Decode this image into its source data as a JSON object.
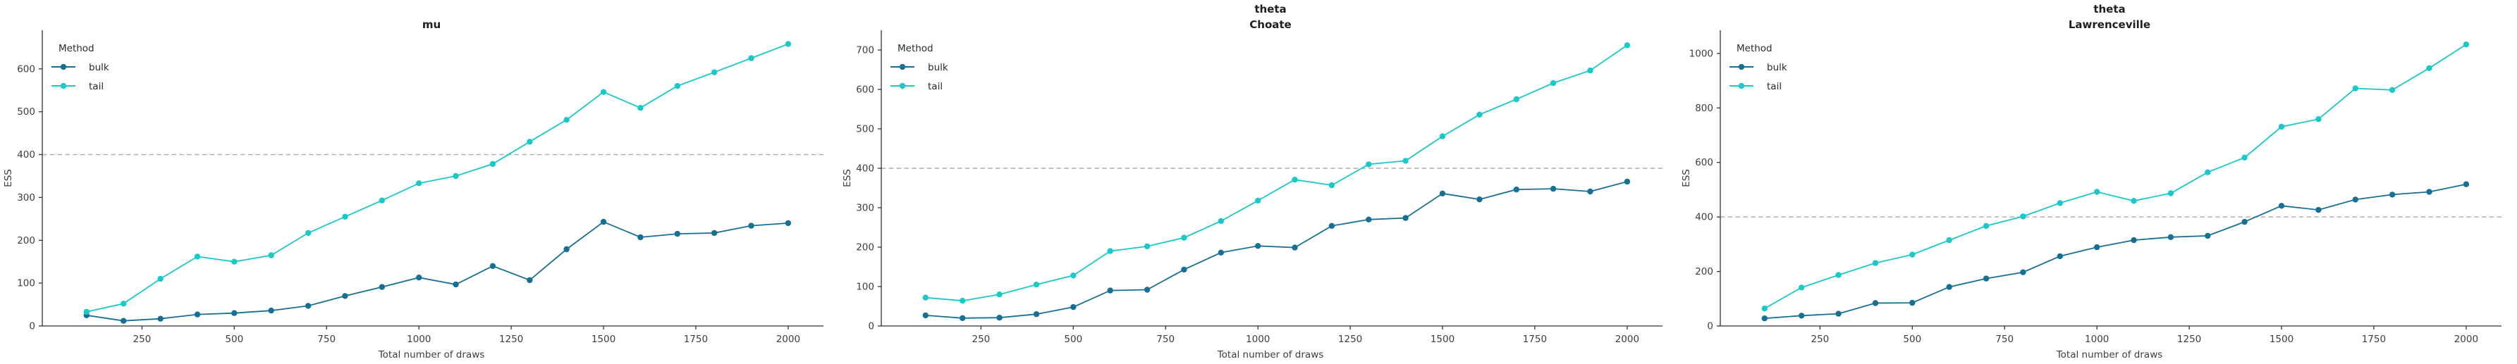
{
  "figure": {
    "legend_title": "Method",
    "refline_y": 400,
    "colors": {
      "bulk": "#177094",
      "tail": "#1ac8c8",
      "refline": "#ababab",
      "axis": "#333333",
      "tick_text": "#3d3d3d",
      "title_text": "#1f1f1f"
    }
  },
  "chart_data": [
    {
      "type": "line",
      "title_line1": "",
      "title_line2": "mu",
      "xlabel": "Total number of draws",
      "ylabel": "ESS",
      "legend_position": "upper left",
      "grid": false,
      "refline": 400,
      "xlim": [
        -20,
        2090
      ],
      "ylim": [
        0,
        690
      ],
      "xticks": [
        250,
        500,
        750,
        1000,
        1250,
        1500,
        1750,
        2000
      ],
      "yticks": [
        0,
        100,
        200,
        300,
        400,
        500,
        600
      ],
      "x": [
        100,
        200,
        300,
        400,
        500,
        600,
        700,
        800,
        900,
        1000,
        1100,
        1200,
        1300,
        1400,
        1500,
        1600,
        1700,
        1800,
        1900,
        2000
      ],
      "series": [
        {
          "name": "bulk",
          "color": "#177094",
          "values": [
            25,
            12,
            17,
            27,
            30,
            36,
            47,
            70,
            91,
            113,
            97,
            140,
            107,
            179,
            243,
            207,
            215,
            217,
            234,
            240
          ]
        },
        {
          "name": "tail",
          "color": "#1ac8c8",
          "values": [
            33,
            52,
            110,
            162,
            150,
            165,
            217,
            255,
            293,
            333,
            350,
            378,
            430,
            481,
            546,
            509,
            560,
            592,
            625,
            658
          ]
        }
      ]
    },
    {
      "type": "line",
      "title_line1": "theta",
      "title_line2": "Choate",
      "xlabel": "Total number of draws",
      "ylabel": "ESS",
      "legend_position": "upper left",
      "grid": false,
      "refline": 400,
      "xlim": [
        -20,
        2090
      ],
      "ylim": [
        0,
        750
      ],
      "xticks": [
        250,
        500,
        750,
        1000,
        1250,
        1500,
        1750,
        2000
      ],
      "yticks": [
        0,
        100,
        200,
        300,
        400,
        500,
        600,
        700
      ],
      "x": [
        100,
        200,
        300,
        400,
        500,
        600,
        700,
        800,
        900,
        1000,
        1100,
        1200,
        1300,
        1400,
        1500,
        1600,
        1700,
        1800,
        1900,
        2000
      ],
      "series": [
        {
          "name": "bulk",
          "color": "#177094",
          "values": [
            27,
            20,
            21,
            30,
            48,
            90,
            92,
            143,
            186,
            203,
            199,
            254,
            270,
            274,
            336,
            321,
            346,
            348,
            341,
            366
          ]
        },
        {
          "name": "tail",
          "color": "#1ac8c8",
          "values": [
            72,
            64,
            80,
            105,
            128,
            190,
            202,
            224,
            266,
            318,
            371,
            357,
            410,
            419,
            481,
            536,
            575,
            616,
            648,
            712
          ]
        }
      ]
    },
    {
      "type": "line",
      "title_line1": "theta",
      "title_line2": "Lawrenceville",
      "xlabel": "Total number of draws",
      "ylabel": "ESS",
      "legend_position": "upper left",
      "grid": false,
      "refline": 400,
      "xlim": [
        -20,
        2090
      ],
      "ylim": [
        0,
        1085
      ],
      "xticks": [
        250,
        500,
        750,
        1000,
        1250,
        1500,
        1750,
        2000
      ],
      "yticks": [
        0,
        200,
        400,
        600,
        800,
        1000
      ],
      "x": [
        100,
        200,
        300,
        400,
        500,
        600,
        700,
        800,
        900,
        1000,
        1100,
        1200,
        1300,
        1400,
        1500,
        1600,
        1700,
        1800,
        1900,
        2000
      ],
      "series": [
        {
          "name": "bulk",
          "color": "#177094",
          "values": [
            28,
            38,
            45,
            84,
            85,
            143,
            174,
            197,
            256,
            289,
            315,
            326,
            331,
            382,
            441,
            426,
            464,
            482,
            492,
            520
          ]
        },
        {
          "name": "tail",
          "color": "#1ac8c8",
          "values": [
            64,
            141,
            187,
            231,
            262,
            315,
            367,
            402,
            451,
            492,
            459,
            487,
            564,
            618,
            731,
            759,
            872,
            866,
            946,
            1033
          ]
        }
      ]
    }
  ]
}
